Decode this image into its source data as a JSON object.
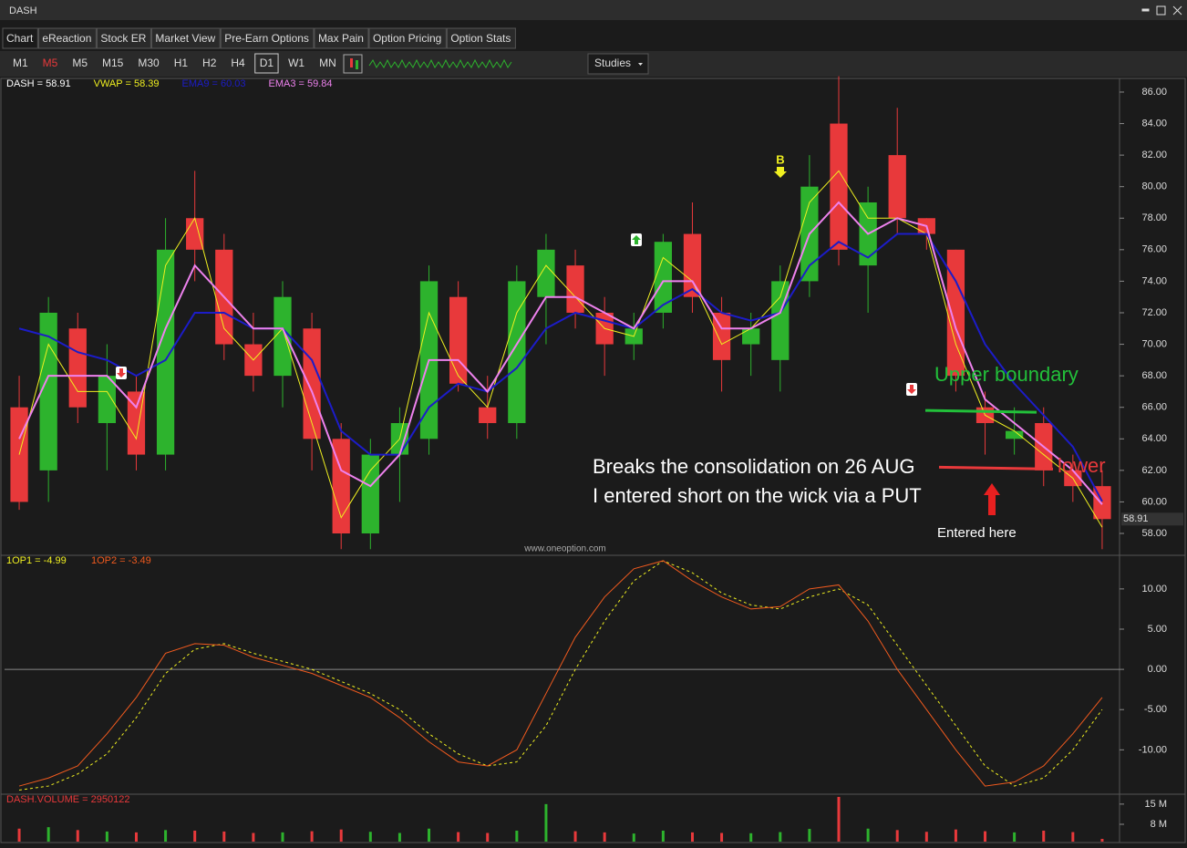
{
  "window": {
    "title": "DASH"
  },
  "tabs": [
    "Chart",
    "eReaction",
    "Stock ER",
    "Market View",
    "Pre-Earn Options",
    "Max Pain",
    "Option Pricing",
    "Option Stats"
  ],
  "timeframes": [
    "M1",
    "M5",
    "M5",
    "M15",
    "M30",
    "H1",
    "H2",
    "H4",
    "D1",
    "W1",
    "MN"
  ],
  "studies": "Studies",
  "chart_data": [
    {
      "type": "candlestick",
      "name": "DASH = 58.91",
      "last_label": "58.91",
      "watermark": "www.oneoption.com",
      "up_color": "#2db32d",
      "down_color": "#e8393b",
      "open": [
        66,
        62,
        71,
        65,
        67,
        63,
        78,
        76,
        70,
        68,
        71,
        64,
        58,
        63,
        64,
        73,
        66,
        65,
        73,
        75,
        72,
        70,
        72,
        77,
        72,
        70,
        69,
        74,
        84,
        75,
        82,
        78,
        76,
        66,
        64,
        65,
        62,
        61
      ],
      "high": [
        68,
        73,
        72,
        70,
        68,
        78,
        81,
        77,
        72,
        74,
        72,
        65,
        64,
        66,
        75,
        74,
        68,
        75,
        77,
        76,
        73,
        72,
        77,
        79,
        73,
        72,
        75,
        82,
        87,
        80,
        85,
        78,
        76,
        67,
        66,
        66,
        63,
        62
      ],
      "low": [
        59.5,
        60,
        65,
        62,
        62,
        62,
        74,
        69,
        67,
        66,
        62,
        57,
        57,
        60,
        63,
        67,
        64,
        64,
        70,
        71,
        68,
        69,
        71,
        72,
        67,
        68,
        67,
        73,
        75,
        72,
        77,
        76,
        67,
        63,
        63,
        61,
        60,
        57
      ],
      "close": [
        60,
        72,
        66,
        68,
        63,
        76,
        76,
        70,
        68,
        73,
        64,
        58,
        63,
        65,
        74,
        67.5,
        65,
        74,
        76,
        72,
        70,
        71,
        76.5,
        73,
        69,
        71,
        74,
        80,
        76,
        79,
        78,
        77,
        68,
        65,
        64.5,
        62,
        61,
        58.91
      ],
      "series": [
        {
          "name": "VWAP = 58.39",
          "color": "#f0f020",
          "values": [
            63,
            70,
            67,
            67,
            64,
            75,
            78,
            71,
            69,
            71,
            65,
            59,
            62,
            64,
            72,
            68,
            66,
            72,
            75,
            73,
            71,
            70.5,
            75.5,
            74,
            70,
            71,
            73,
            79,
            81,
            78,
            78,
            77,
            70,
            65.5,
            64.5,
            63,
            61.5,
            58.39
          ]
        },
        {
          "name": "EMA9 = 60.03",
          "color": "#1c1cc8",
          "values": [
            71,
            70.5,
            69.5,
            69,
            68,
            69,
            72,
            72,
            71,
            71,
            69,
            64.5,
            63,
            63,
            66,
            67.5,
            67,
            68.5,
            71,
            72,
            71.5,
            71,
            72.5,
            73.5,
            72,
            71.5,
            72,
            75,
            76.5,
            75.5,
            77,
            77,
            74,
            70,
            67.5,
            65.5,
            63.5,
            60.03
          ]
        },
        {
          "name": "EMA3 = 59.84",
          "color": "#ee82ee",
          "values": [
            64,
            68,
            68,
            68,
            66,
            71,
            75,
            73,
            71,
            71,
            67,
            62,
            61,
            63,
            69,
            69,
            67,
            70,
            73,
            73,
            72,
            71,
            74,
            74,
            71,
            71,
            72,
            77,
            79,
            77,
            78,
            77.5,
            71,
            66.5,
            65,
            63.5,
            62,
            59.84
          ]
        }
      ],
      "ylim": [
        56.67,
        86.75
      ],
      "yticks": [
        {
          "value": 58,
          "label": "58.00"
        },
        {
          "value": 60,
          "label": "60.00"
        },
        {
          "value": 62,
          "label": "62.00"
        },
        {
          "value": 64,
          "label": "64.00"
        },
        {
          "value": 66,
          "label": "66.00"
        },
        {
          "value": 68,
          "label": "68.00"
        },
        {
          "value": 70,
          "label": "70.00"
        },
        {
          "value": 72,
          "label": "72.00"
        },
        {
          "value": 74,
          "label": "74.00"
        },
        {
          "value": 76,
          "label": "76.00"
        },
        {
          "value": 78,
          "label": "78.00"
        },
        {
          "value": 80,
          "label": "80.00"
        },
        {
          "value": 82,
          "label": "82.00"
        },
        {
          "value": 84,
          "label": "84.00"
        },
        {
          "value": 86,
          "label": "86.00"
        }
      ],
      "annotations": {
        "upper_boundary": {
          "text": "Upper boundary",
          "level": 65.8,
          "color": "#22c03a"
        },
        "lower": {
          "text": "lower",
          "level": 62.2,
          "color": "#e8393b"
        },
        "note_1": "Breaks the consolidation on 26 AUG",
        "note_2": "I entered short on the wick via a PUT",
        "entry": "Entered here",
        "signal": "B"
      }
    },
    {
      "type": "line",
      "ylim": [
        -15.4,
        13.95
      ],
      "yticks": [
        {
          "value": 10,
          "label": "10.00"
        },
        {
          "value": 5,
          "label": "5.00"
        },
        {
          "value": 0,
          "label": "0.00"
        },
        {
          "value": -5,
          "label": "-5.00"
        },
        {
          "value": -10,
          "label": "-10.00"
        }
      ],
      "zero_line": true,
      "series": [
        {
          "name": "1OP1 = -4.99",
          "color": "#f0f020",
          "style": "dashed",
          "values": [
            -15,
            -14.5,
            -13,
            -10.5,
            -6,
            -0.5,
            2.5,
            3.2,
            2,
            1,
            0,
            -1.5,
            -3,
            -5,
            -8,
            -10.5,
            -12,
            -11.5,
            -7,
            0,
            6,
            11,
            13.5,
            12,
            9.5,
            8,
            7.5,
            9,
            10,
            8,
            3,
            -2,
            -7,
            -12,
            -14.5,
            -13.5,
            -10,
            -4.99
          ]
        },
        {
          "name": "1OP2 = -3.49",
          "color": "#f05a1e",
          "style": "solid",
          "values": [
            -14.5,
            -13.5,
            -12,
            -8,
            -3.5,
            2,
            3.2,
            3,
            1.5,
            0.5,
            -0.5,
            -2,
            -3.5,
            -6,
            -9,
            -11.5,
            -12,
            -10,
            -3,
            4,
            9,
            12.5,
            13.5,
            11,
            9,
            7.5,
            7.8,
            10,
            10.5,
            6,
            0,
            -5,
            -10,
            -14.5,
            -14,
            -12,
            -8,
            -3.49
          ]
        }
      ]
    },
    {
      "type": "bar",
      "name": "DASH.VOLUME = 2950122",
      "name_color": "#e8393b",
      "ylim": [
        2000000,
        17800000
      ],
      "yticks": [
        {
          "value": 15000000,
          "label": "15 M"
        },
        {
          "value": 8000000,
          "label": "8 M"
        }
      ],
      "values": [
        6500000,
        7000000,
        6000000,
        5500000,
        5200000,
        6000000,
        5800000,
        5500000,
        5000000,
        5200000,
        5600000,
        6200000,
        5400000,
        5000000,
        6500000,
        5300000,
        5000000,
        5800000,
        15000000,
        5600000,
        5200000,
        4800000,
        5800000,
        5200000,
        5000000,
        4900000,
        5300000,
        6400000,
        17500000,
        6500000,
        6000000,
        5400000,
        6200000,
        5600000,
        5200000,
        5800000,
        5300000,
        2950122
      ]
    }
  ]
}
